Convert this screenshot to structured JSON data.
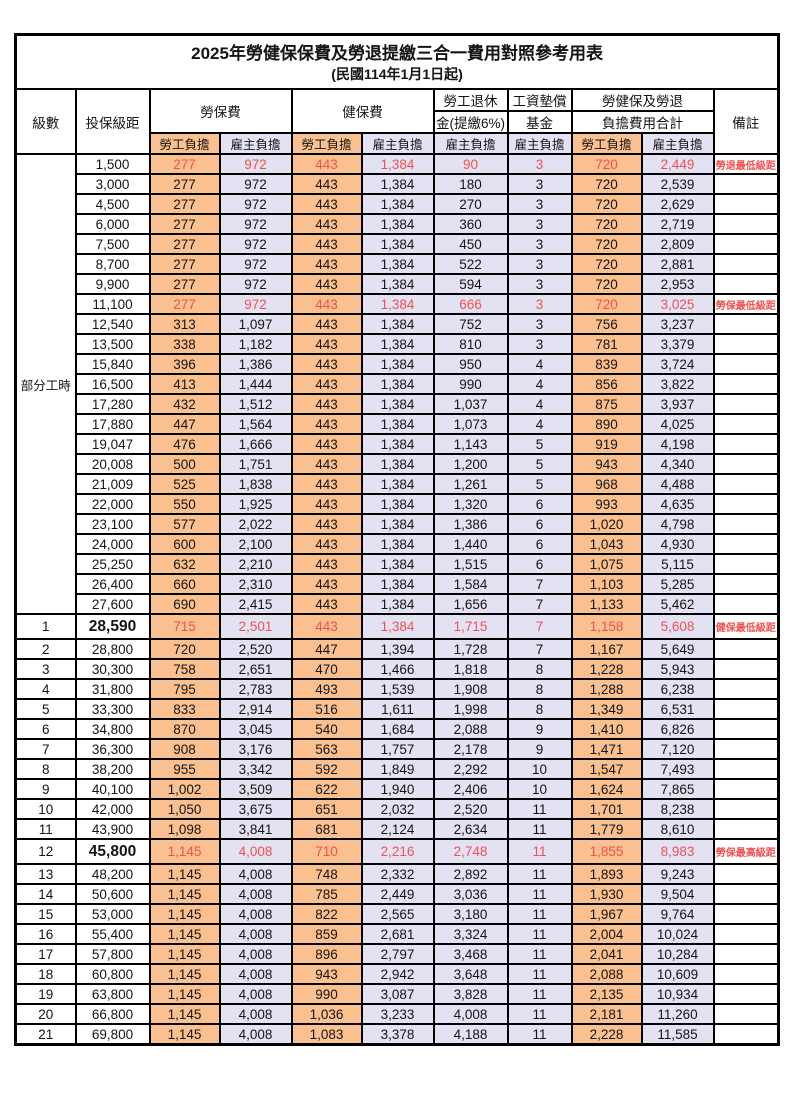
{
  "title": "2025年勞健保保費及勞退提繳三合一費用對照參考用表",
  "subtitle": "(民國114年1月1日起)",
  "header": {
    "level": "級數",
    "bracket": "投保級距",
    "labor_fee": "勞保費",
    "health_fee": "健保費",
    "pension_line1": "勞工退休",
    "pension_line2": "金(提繳6%)",
    "wage_fund_line1": "工資墊償",
    "wage_fund_line2": "基金",
    "total_line1": "勞健保及勞退",
    "total_line2": "負擔費用合計",
    "remark": "備註",
    "employee_share": "勞工負擔",
    "employer_share": "雇主負擔"
  },
  "part_time_label": "部分工時",
  "part_time_rowspan": 23,
  "colors": {
    "employee_bg": "#FAC090",
    "employer_bg": "#E2E2F2",
    "highlight_text": "#F25050"
  },
  "rows": [
    {
      "level": "",
      "bracket": "1,500",
      "values": [
        "277",
        "972",
        "443",
        "1,384",
        "90",
        "3",
        "720",
        "2,449"
      ],
      "remark": "勞退最低級距",
      "highlight": true,
      "bold": false
    },
    {
      "level": "",
      "bracket": "3,000",
      "values": [
        "277",
        "972",
        "443",
        "1,384",
        "180",
        "3",
        "720",
        "2,539"
      ],
      "remark": "",
      "highlight": false,
      "bold": false
    },
    {
      "level": "",
      "bracket": "4,500",
      "values": [
        "277",
        "972",
        "443",
        "1,384",
        "270",
        "3",
        "720",
        "2,629"
      ],
      "remark": "",
      "highlight": false,
      "bold": false
    },
    {
      "level": "",
      "bracket": "6,000",
      "values": [
        "277",
        "972",
        "443",
        "1,384",
        "360",
        "3",
        "720",
        "2,719"
      ],
      "remark": "",
      "highlight": false,
      "bold": false
    },
    {
      "level": "",
      "bracket": "7,500",
      "values": [
        "277",
        "972",
        "443",
        "1,384",
        "450",
        "3",
        "720",
        "2,809"
      ],
      "remark": "",
      "highlight": false,
      "bold": false
    },
    {
      "level": "",
      "bracket": "8,700",
      "values": [
        "277",
        "972",
        "443",
        "1,384",
        "522",
        "3",
        "720",
        "2,881"
      ],
      "remark": "",
      "highlight": false,
      "bold": false
    },
    {
      "level": "",
      "bracket": "9,900",
      "values": [
        "277",
        "972",
        "443",
        "1,384",
        "594",
        "3",
        "720",
        "2,953"
      ],
      "remark": "",
      "highlight": false,
      "bold": false
    },
    {
      "level": "",
      "bracket": "11,100",
      "values": [
        "277",
        "972",
        "443",
        "1,384",
        "666",
        "3",
        "720",
        "3,025"
      ],
      "remark": "勞保最低級距",
      "highlight": true,
      "bold": false
    },
    {
      "level": "",
      "bracket": "12,540",
      "values": [
        "313",
        "1,097",
        "443",
        "1,384",
        "752",
        "3",
        "756",
        "3,237"
      ],
      "remark": "",
      "highlight": false,
      "bold": false
    },
    {
      "level": "",
      "bracket": "13,500",
      "values": [
        "338",
        "1,182",
        "443",
        "1,384",
        "810",
        "3",
        "781",
        "3,379"
      ],
      "remark": "",
      "highlight": false,
      "bold": false
    },
    {
      "level": "",
      "bracket": "15,840",
      "values": [
        "396",
        "1,386",
        "443",
        "1,384",
        "950",
        "4",
        "839",
        "3,724"
      ],
      "remark": "",
      "highlight": false,
      "bold": false
    },
    {
      "level": "",
      "bracket": "16,500",
      "values": [
        "413",
        "1,444",
        "443",
        "1,384",
        "990",
        "4",
        "856",
        "3,822"
      ],
      "remark": "",
      "highlight": false,
      "bold": false
    },
    {
      "level": "",
      "bracket": "17,280",
      "values": [
        "432",
        "1,512",
        "443",
        "1,384",
        "1,037",
        "4",
        "875",
        "3,937"
      ],
      "remark": "",
      "highlight": false,
      "bold": false
    },
    {
      "level": "",
      "bracket": "17,880",
      "values": [
        "447",
        "1,564",
        "443",
        "1,384",
        "1,073",
        "4",
        "890",
        "4,025"
      ],
      "remark": "",
      "highlight": false,
      "bold": false
    },
    {
      "level": "",
      "bracket": "19,047",
      "values": [
        "476",
        "1,666",
        "443",
        "1,384",
        "1,143",
        "5",
        "919",
        "4,198"
      ],
      "remark": "",
      "highlight": false,
      "bold": false
    },
    {
      "level": "",
      "bracket": "20,008",
      "values": [
        "500",
        "1,751",
        "443",
        "1,384",
        "1,200",
        "5",
        "943",
        "4,340"
      ],
      "remark": "",
      "highlight": false,
      "bold": false
    },
    {
      "level": "",
      "bracket": "21,009",
      "values": [
        "525",
        "1,838",
        "443",
        "1,384",
        "1,261",
        "5",
        "968",
        "4,488"
      ],
      "remark": "",
      "highlight": false,
      "bold": false
    },
    {
      "level": "",
      "bracket": "22,000",
      "values": [
        "550",
        "1,925",
        "443",
        "1,384",
        "1,320",
        "6",
        "993",
        "4,635"
      ],
      "remark": "",
      "highlight": false,
      "bold": false
    },
    {
      "level": "",
      "bracket": "23,100",
      "values": [
        "577",
        "2,022",
        "443",
        "1,384",
        "1,386",
        "6",
        "1,020",
        "4,798"
      ],
      "remark": "",
      "highlight": false,
      "bold": false
    },
    {
      "level": "",
      "bracket": "24,000",
      "values": [
        "600",
        "2,100",
        "443",
        "1,384",
        "1,440",
        "6",
        "1,043",
        "4,930"
      ],
      "remark": "",
      "highlight": false,
      "bold": false
    },
    {
      "level": "",
      "bracket": "25,250",
      "values": [
        "632",
        "2,210",
        "443",
        "1,384",
        "1,515",
        "6",
        "1,075",
        "5,115"
      ],
      "remark": "",
      "highlight": false,
      "bold": false
    },
    {
      "level": "",
      "bracket": "26,400",
      "values": [
        "660",
        "2,310",
        "443",
        "1,384",
        "1,584",
        "7",
        "1,103",
        "5,285"
      ],
      "remark": "",
      "highlight": false,
      "bold": false
    },
    {
      "level": "",
      "bracket": "27,600",
      "values": [
        "690",
        "2,415",
        "443",
        "1,384",
        "1,656",
        "7",
        "1,133",
        "5,462"
      ],
      "remark": "",
      "highlight": false,
      "bold": false
    },
    {
      "level": "1",
      "bracket": "28,590",
      "values": [
        "715",
        "2,501",
        "443",
        "1,384",
        "1,715",
        "7",
        "1,158",
        "5,608"
      ],
      "remark": "健保最低級距",
      "highlight": true,
      "bold": true
    },
    {
      "level": "2",
      "bracket": "28,800",
      "values": [
        "720",
        "2,520",
        "447",
        "1,394",
        "1,728",
        "7",
        "1,167",
        "5,649"
      ],
      "remark": "",
      "highlight": false,
      "bold": false
    },
    {
      "level": "3",
      "bracket": "30,300",
      "values": [
        "758",
        "2,651",
        "470",
        "1,466",
        "1,818",
        "8",
        "1,228",
        "5,943"
      ],
      "remark": "",
      "highlight": false,
      "bold": false
    },
    {
      "level": "4",
      "bracket": "31,800",
      "values": [
        "795",
        "2,783",
        "493",
        "1,539",
        "1,908",
        "8",
        "1,288",
        "6,238"
      ],
      "remark": "",
      "highlight": false,
      "bold": false
    },
    {
      "level": "5",
      "bracket": "33,300",
      "values": [
        "833",
        "2,914",
        "516",
        "1,611",
        "1,998",
        "8",
        "1,349",
        "6,531"
      ],
      "remark": "",
      "highlight": false,
      "bold": false
    },
    {
      "level": "6",
      "bracket": "34,800",
      "values": [
        "870",
        "3,045",
        "540",
        "1,684",
        "2,088",
        "9",
        "1,410",
        "6,826"
      ],
      "remark": "",
      "highlight": false,
      "bold": false
    },
    {
      "level": "7",
      "bracket": "36,300",
      "values": [
        "908",
        "3,176",
        "563",
        "1,757",
        "2,178",
        "9",
        "1,471",
        "7,120"
      ],
      "remark": "",
      "highlight": false,
      "bold": false
    },
    {
      "level": "8",
      "bracket": "38,200",
      "values": [
        "955",
        "3,342",
        "592",
        "1,849",
        "2,292",
        "10",
        "1,547",
        "7,493"
      ],
      "remark": "",
      "highlight": false,
      "bold": false
    },
    {
      "level": "9",
      "bracket": "40,100",
      "values": [
        "1,002",
        "3,509",
        "622",
        "1,940",
        "2,406",
        "10",
        "1,624",
        "7,865"
      ],
      "remark": "",
      "highlight": false,
      "bold": false
    },
    {
      "level": "10",
      "bracket": "42,000",
      "values": [
        "1,050",
        "3,675",
        "651",
        "2,032",
        "2,520",
        "11",
        "1,701",
        "8,238"
      ],
      "remark": "",
      "highlight": false,
      "bold": false
    },
    {
      "level": "11",
      "bracket": "43,900",
      "values": [
        "1,098",
        "3,841",
        "681",
        "2,124",
        "2,634",
        "11",
        "1,779",
        "8,610"
      ],
      "remark": "",
      "highlight": false,
      "bold": false
    },
    {
      "level": "12",
      "bracket": "45,800",
      "values": [
        "1,145",
        "4,008",
        "710",
        "2,216",
        "2,748",
        "11",
        "1,855",
        "8,983"
      ],
      "remark": "勞保最高級距",
      "highlight": true,
      "bold": true
    },
    {
      "level": "13",
      "bracket": "48,200",
      "values": [
        "1,145",
        "4,008",
        "748",
        "2,332",
        "2,892",
        "11",
        "1,893",
        "9,243"
      ],
      "remark": "",
      "highlight": false,
      "bold": false
    },
    {
      "level": "14",
      "bracket": "50,600",
      "values": [
        "1,145",
        "4,008",
        "785",
        "2,449",
        "3,036",
        "11",
        "1,930",
        "9,504"
      ],
      "remark": "",
      "highlight": false,
      "bold": false
    },
    {
      "level": "15",
      "bracket": "53,000",
      "values": [
        "1,145",
        "4,008",
        "822",
        "2,565",
        "3,180",
        "11",
        "1,967",
        "9,764"
      ],
      "remark": "",
      "highlight": false,
      "bold": false
    },
    {
      "level": "16",
      "bracket": "55,400",
      "values": [
        "1,145",
        "4,008",
        "859",
        "2,681",
        "3,324",
        "11",
        "2,004",
        "10,024"
      ],
      "remark": "",
      "highlight": false,
      "bold": false
    },
    {
      "level": "17",
      "bracket": "57,800",
      "values": [
        "1,145",
        "4,008",
        "896",
        "2,797",
        "3,468",
        "11",
        "2,041",
        "10,284"
      ],
      "remark": "",
      "highlight": false,
      "bold": false
    },
    {
      "level": "18",
      "bracket": "60,800",
      "values": [
        "1,145",
        "4,008",
        "943",
        "2,942",
        "3,648",
        "11",
        "2,088",
        "10,609"
      ],
      "remark": "",
      "highlight": false,
      "bold": false
    },
    {
      "level": "19",
      "bracket": "63,800",
      "values": [
        "1,145",
        "4,008",
        "990",
        "3,087",
        "3,828",
        "11",
        "2,135",
        "10,934"
      ],
      "remark": "",
      "highlight": false,
      "bold": false
    },
    {
      "level": "20",
      "bracket": "66,800",
      "values": [
        "1,145",
        "4,008",
        "1,036",
        "3,233",
        "4,008",
        "11",
        "2,181",
        "11,260"
      ],
      "remark": "",
      "highlight": false,
      "bold": false
    },
    {
      "level": "21",
      "bracket": "69,800",
      "values": [
        "1,145",
        "4,008",
        "1,083",
        "3,378",
        "4,188",
        "11",
        "2,228",
        "11,585"
      ],
      "remark": "",
      "highlight": false,
      "bold": false
    }
  ]
}
